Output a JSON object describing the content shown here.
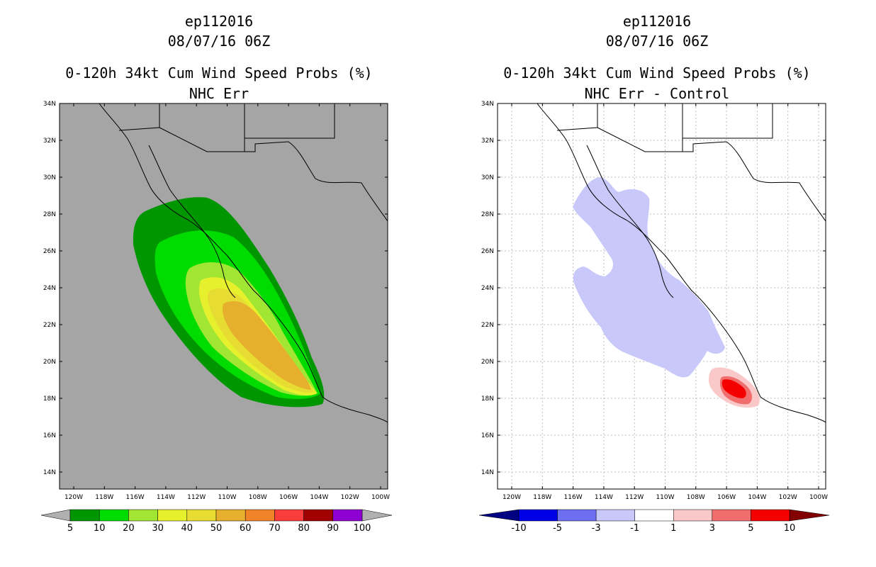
{
  "panels": [
    {
      "id": "left",
      "storm": "ep112016",
      "datetime": "08/07/16 06Z",
      "product": "0-120h 34kt Cum Wind Speed Probs (%)",
      "subtitle": "NHC Err",
      "background": "#a5a5a5",
      "colorbar": {
        "labels": [
          "5",
          "10",
          "20",
          "30",
          "40",
          "50",
          "60",
          "70",
          "80",
          "90",
          "100"
        ],
        "colors": [
          "#009600",
          "#00dc00",
          "#a0e632",
          "#e6f02d",
          "#e6dc32",
          "#e6af2d",
          "#f08228",
          "#fa3c3c",
          "#a00000",
          "#8c00d2"
        ],
        "under": "#b0b0b0",
        "over": "#b0b0b0"
      }
    },
    {
      "id": "right",
      "storm": "ep112016",
      "datetime": "08/07/16 06Z",
      "product": "0-120h 34kt Cum Wind Speed Probs (%)",
      "subtitle": "NHC Err - Control",
      "background": "#ffffff",
      "colorbar": {
        "labels": [
          "-10",
          "-5",
          "-3",
          "-1",
          "1",
          "3",
          "5",
          "10"
        ],
        "colors": [
          "#0000e6",
          "#6e6ef0",
          "#c8c8fa",
          "#ffffff",
          "#fac8c8",
          "#f06e6e",
          "#f50000"
        ],
        "under": "#000082",
        "over": "#820000"
      }
    }
  ],
  "axes": {
    "lat_labels": [
      "34N",
      "32N",
      "30N",
      "28N",
      "26N",
      "24N",
      "22N",
      "20N",
      "18N",
      "16N",
      "14N"
    ],
    "lon_labels": [
      "120W",
      "118W",
      "116W",
      "114W",
      "112W",
      "110W",
      "108W",
      "106W",
      "104W",
      "102W",
      "100W"
    ]
  }
}
